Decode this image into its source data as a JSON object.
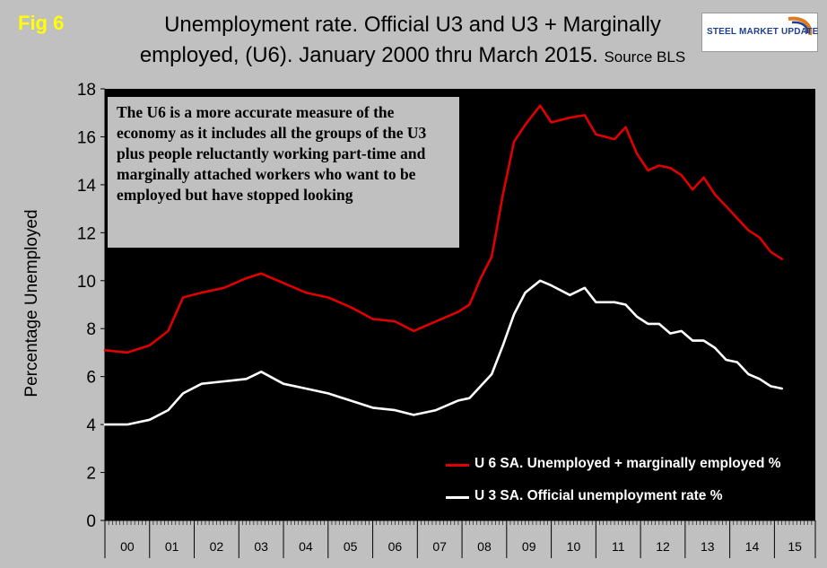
{
  "fig_label": "Fig 6",
  "title": {
    "line1": "Unemployment rate. Official U3 and U3 + Marginally",
    "line2": "employed, (U6). January 2000 thru March 2015.",
    "source": "Source BLS"
  },
  "logo": {
    "text": "STEEL MARKET UPDATE"
  },
  "annotation": "The U6 is a more accurate measure of the economy as it includes all the groups of the U3 plus people reluctantly working part-time and marginally attached workers who want to be employed but have stopped looking",
  "chart_data": {
    "type": "line",
    "title": "Unemployment rate. Official U3 and U3 + Marginally employed, (U6). January 2000 thru March 2015.",
    "ylabel": "Percentage Unemployed",
    "xlabel": "",
    "ylim": [
      0,
      18
    ],
    "yticks": [
      0,
      2,
      4,
      6,
      8,
      10,
      12,
      14,
      16,
      18
    ],
    "grid": false,
    "legend_position": "bottom-right",
    "x_categories": [
      "00",
      "01",
      "02",
      "03",
      "04",
      "05",
      "06",
      "07",
      "08",
      "09",
      "10",
      "11",
      "12",
      "13",
      "14",
      "15"
    ],
    "x_range": [
      "2000-01",
      "2015-03"
    ],
    "series": [
      {
        "name": "U 6 SA. Unemployed + marginally employed %",
        "color": "#e00000",
        "x": [
          "2000-01",
          "2000-07",
          "2001-01",
          "2001-06",
          "2001-10",
          "2002-03",
          "2002-09",
          "2003-03",
          "2003-07",
          "2004-01",
          "2004-07",
          "2005-01",
          "2005-07",
          "2006-01",
          "2006-07",
          "2006-12",
          "2007-06",
          "2007-12",
          "2008-03",
          "2008-06",
          "2008-09",
          "2008-12",
          "2009-03",
          "2009-06",
          "2009-10",
          "2010-01",
          "2010-06",
          "2010-10",
          "2011-01",
          "2011-06",
          "2011-09",
          "2011-12",
          "2012-03",
          "2012-06",
          "2012-09",
          "2012-12",
          "2013-03",
          "2013-06",
          "2013-09",
          "2013-12",
          "2014-03",
          "2014-06",
          "2014-09",
          "2014-12",
          "2015-03"
        ],
        "values": [
          7.1,
          7.0,
          7.3,
          7.9,
          9.3,
          9.5,
          9.7,
          10.1,
          10.3,
          9.9,
          9.5,
          9.3,
          8.9,
          8.4,
          8.3,
          7.9,
          8.3,
          8.7,
          9.0,
          10.1,
          11.0,
          13.6,
          15.8,
          16.5,
          17.3,
          16.6,
          16.8,
          16.9,
          16.1,
          15.9,
          16.4,
          15.3,
          14.6,
          14.8,
          14.7,
          14.4,
          13.8,
          14.3,
          13.6,
          13.1,
          12.6,
          12.1,
          11.8,
          11.2,
          10.9
        ]
      },
      {
        "name": "U 3 SA. Official unemployment rate %",
        "color": "#ffffff",
        "x": [
          "2000-01",
          "2000-07",
          "2001-01",
          "2001-06",
          "2001-10",
          "2002-03",
          "2002-09",
          "2003-03",
          "2003-07",
          "2004-01",
          "2004-07",
          "2005-01",
          "2005-07",
          "2006-01",
          "2006-07",
          "2006-12",
          "2007-06",
          "2007-12",
          "2008-03",
          "2008-06",
          "2008-09",
          "2008-12",
          "2009-03",
          "2009-06",
          "2009-10",
          "2010-01",
          "2010-06",
          "2010-10",
          "2011-01",
          "2011-06",
          "2011-09",
          "2011-12",
          "2012-03",
          "2012-06",
          "2012-09",
          "2012-12",
          "2013-03",
          "2013-06",
          "2013-09",
          "2013-12",
          "2014-03",
          "2014-06",
          "2014-09",
          "2014-12",
          "2015-03"
        ],
        "values": [
          4.0,
          4.0,
          4.2,
          4.6,
          5.3,
          5.7,
          5.8,
          5.9,
          6.2,
          5.7,
          5.5,
          5.3,
          5.0,
          4.7,
          4.6,
          4.4,
          4.6,
          5.0,
          5.1,
          5.6,
          6.1,
          7.3,
          8.6,
          9.5,
          10.0,
          9.8,
          9.4,
          9.7,
          9.1,
          9.1,
          9.0,
          8.5,
          8.2,
          8.2,
          7.8,
          7.9,
          7.5,
          7.5,
          7.2,
          6.7,
          6.6,
          6.1,
          5.9,
          5.6,
          5.5
        ]
      }
    ]
  }
}
